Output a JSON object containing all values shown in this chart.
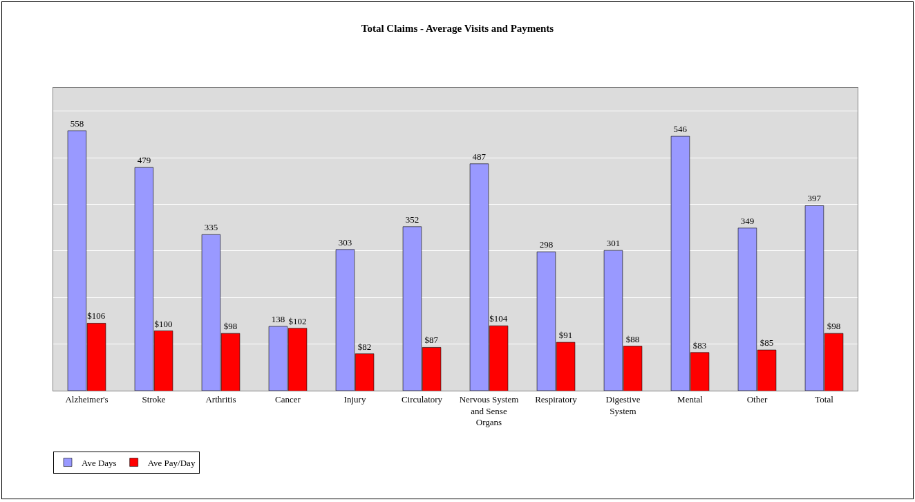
{
  "chart_data": {
    "type": "bar",
    "title": "Total Claims - Average Visits and Payments",
    "categories": [
      "Alzheimer's",
      "Stroke",
      "Arthritis",
      "Cancer",
      "Injury",
      "Circulatory",
      "Nervous System and Sense Organs",
      "Respiratory",
      "Digestive System",
      "Mental",
      "Other",
      "Total"
    ],
    "series": [
      {
        "name": "Ave Days",
        "color": "#9999ff",
        "values": [
          558,
          479,
          335,
          138,
          303,
          352,
          487,
          298,
          301,
          546,
          349,
          397
        ],
        "value_labels": [
          "558",
          "479",
          "335",
          "138",
          "303",
          "352",
          "487",
          "298",
          "301",
          "546",
          "349",
          "397"
        ]
      },
      {
        "name": "Ave Pay/Day",
        "color": "#ff0000",
        "axis": "y2",
        "values": [
          106,
          100,
          98,
          102,
          82,
          87,
          104,
          91,
          88,
          83,
          85,
          98
        ],
        "value_labels": [
          "$106",
          "$100",
          "$98",
          "$102",
          "$82",
          "$87",
          "$104",
          "$91",
          "$88",
          "$83",
          "$85",
          "$98"
        ]
      }
    ],
    "ylim": [
      0,
      650
    ],
    "yticks": [
      {
        "value": 0,
        "label": null
      },
      {
        "value": 100,
        "label": null
      },
      {
        "value": 200,
        "label": null
      },
      {
        "value": 300,
        "label": null
      },
      {
        "value": 400,
        "label": null
      },
      {
        "value": 500,
        "label": null
      },
      {
        "value": 600,
        "label": null
      }
    ],
    "y2lim": [
      53,
      291
    ],
    "tick_labels": "x",
    "grid": "y",
    "legend": "bottom left"
  }
}
